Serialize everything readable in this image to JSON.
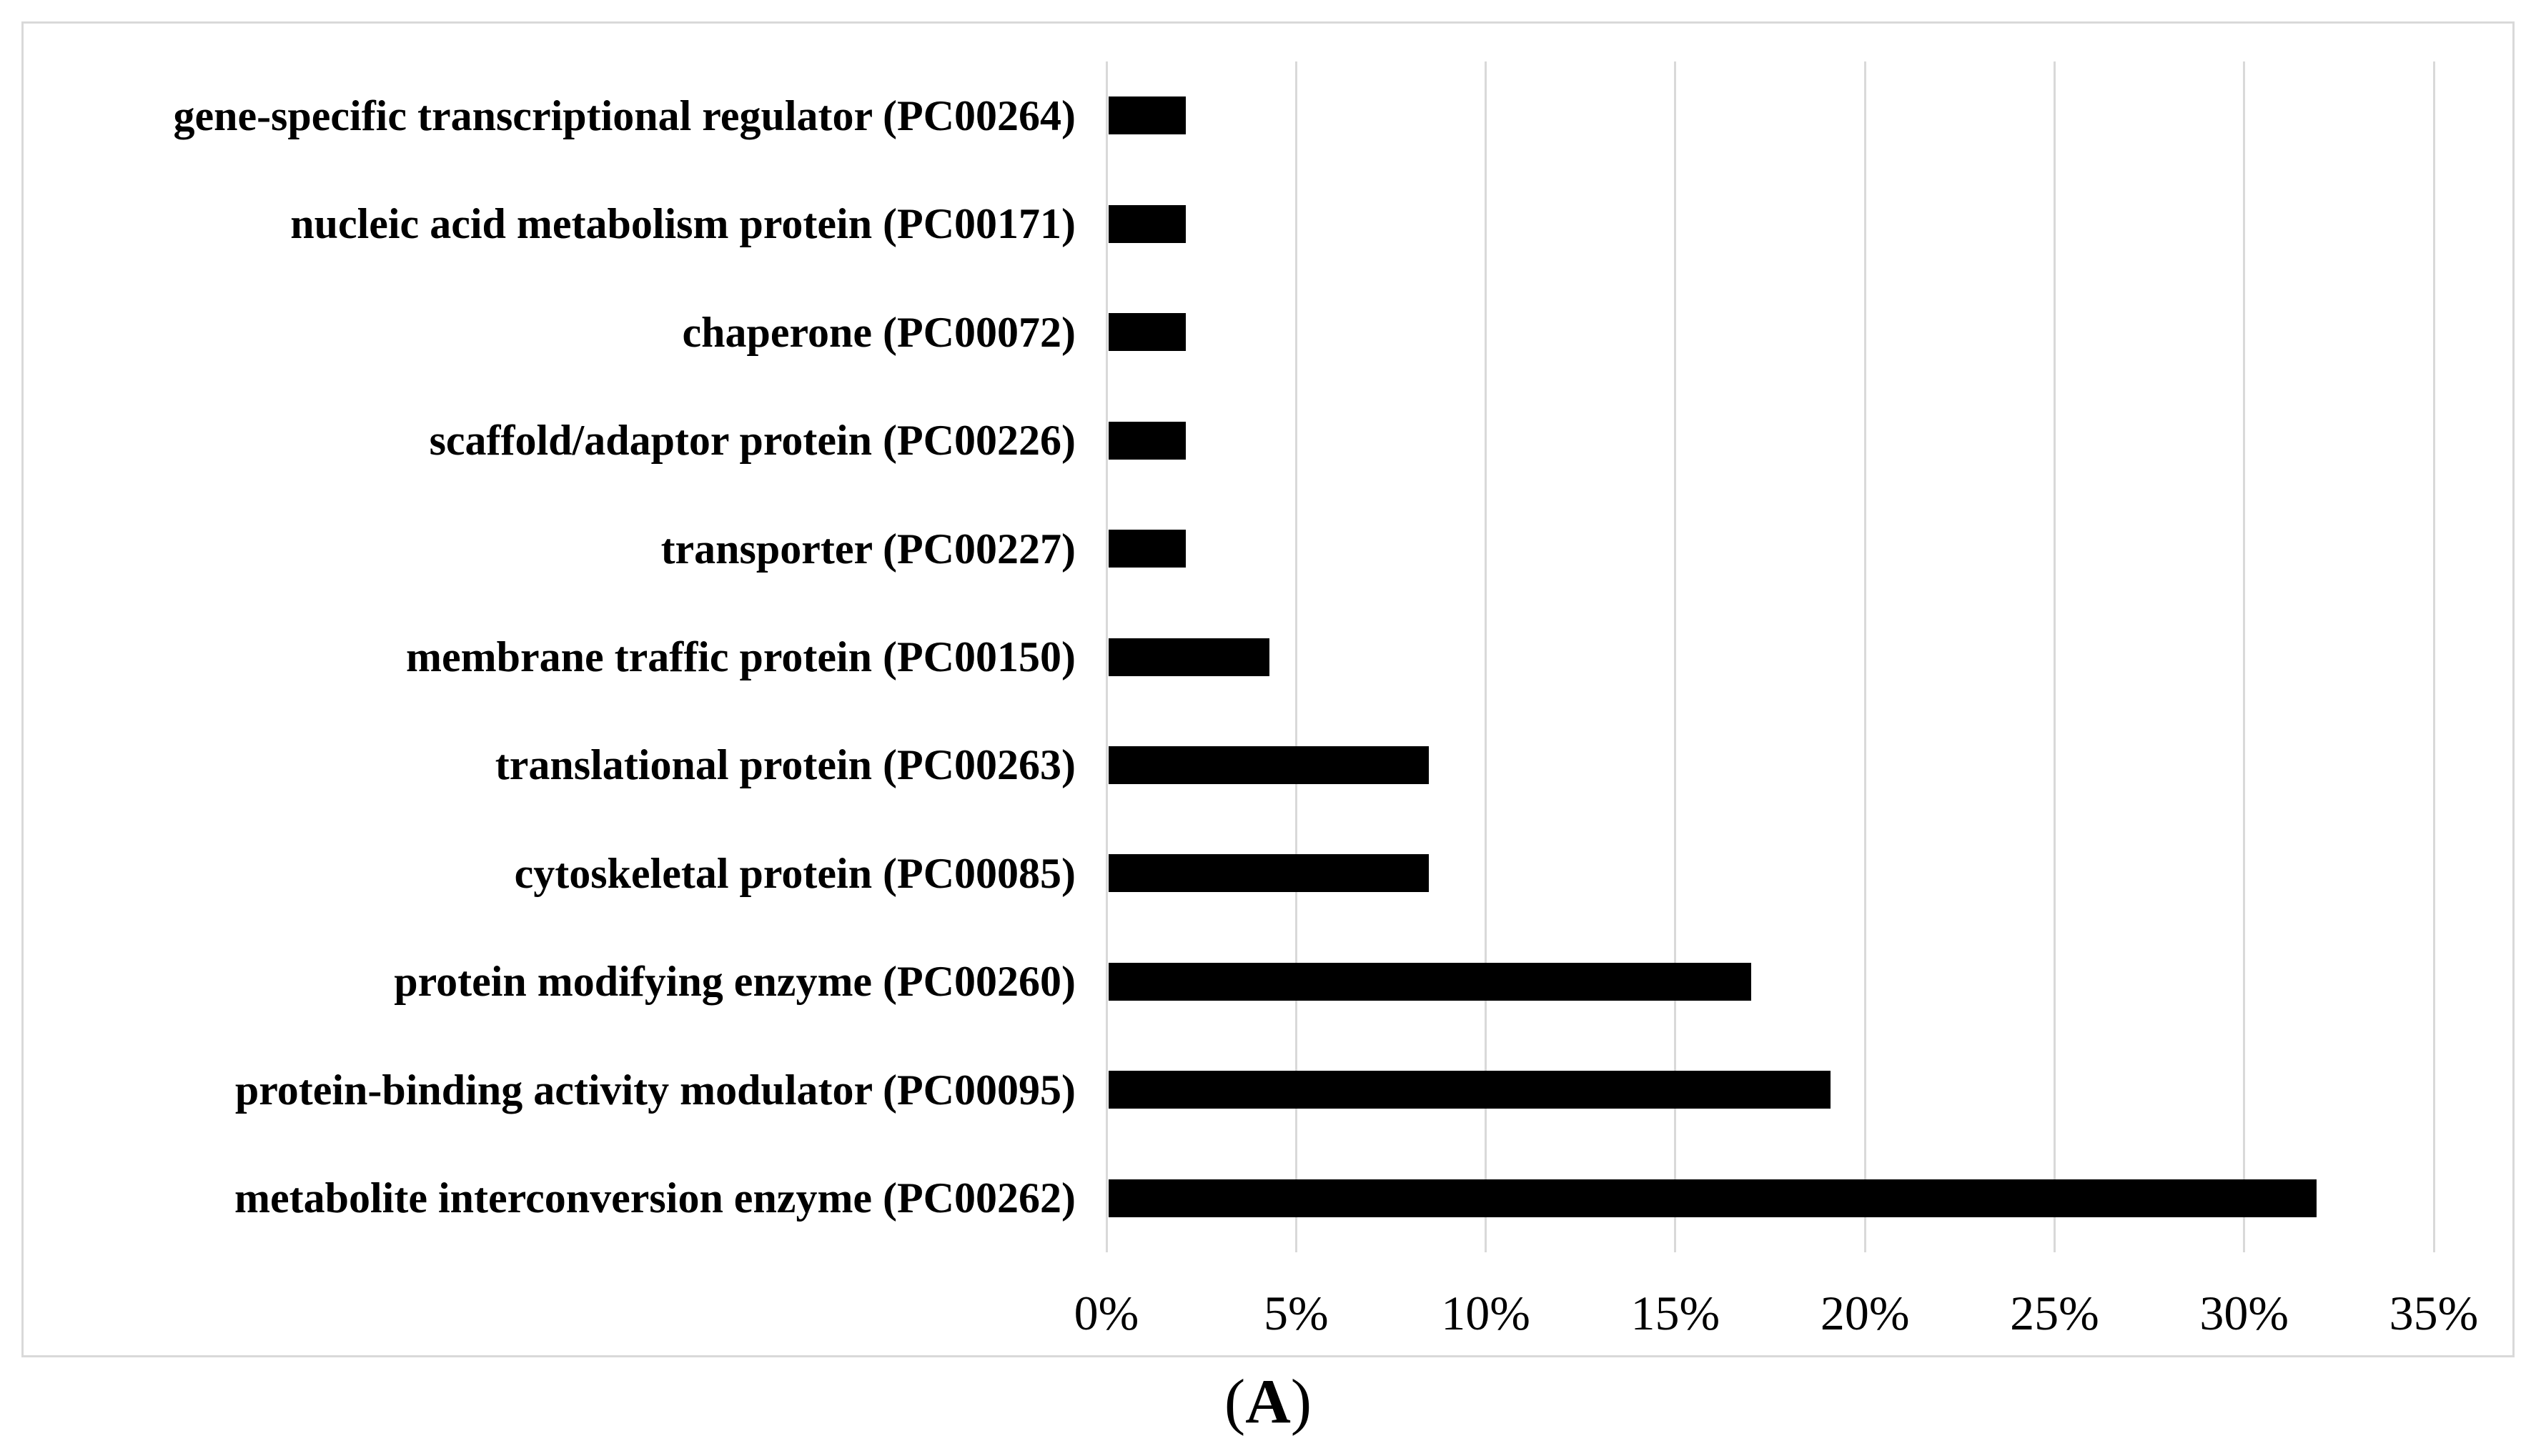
{
  "figure": {
    "caption": {
      "prefix": "(",
      "letter": "A",
      "suffix": ")"
    }
  },
  "chart_data": {
    "type": "bar",
    "orientation": "horizontal",
    "title": "",
    "xlabel": "",
    "ylabel": "",
    "categories": [
      "gene-specific transcriptional regulator (PC00264)",
      "nucleic acid metabolism protein (PC00171)",
      "chaperone (PC00072)",
      "scaffold/adaptor protein (PC00226)",
      "transporter (PC00227)",
      "membrane traffic protein (PC00150)",
      "translational protein (PC00263)",
      "cytoskeletal protein (PC00085)",
      "protein modifying enzyme (PC00260)",
      "protein-binding activity modulator (PC00095)",
      "metabolite interconversion enzyme (PC00262)"
    ],
    "values": [
      2.1,
      2.1,
      2.1,
      2.1,
      2.1,
      4.3,
      8.5,
      8.5,
      17.0,
      19.1,
      31.9
    ],
    "value_unit": "%",
    "xlim": [
      0,
      35
    ],
    "x_ticks": [
      {
        "value": 0,
        "label": "0%"
      },
      {
        "value": 5,
        "label": "5%"
      },
      {
        "value": 10,
        "label": "10%"
      },
      {
        "value": 15,
        "label": "15%"
      },
      {
        "value": 20,
        "label": "20%"
      },
      {
        "value": 25,
        "label": "25%"
      },
      {
        "value": 30,
        "label": "30%"
      },
      {
        "value": 35,
        "label": "35%"
      }
    ],
    "grid": true,
    "legend_position": "none",
    "colors": {
      "bar": "#000000",
      "gridline": "#d9d9d9",
      "frame_border": "#d9d9d9",
      "text": "#000000",
      "background": "#ffffff"
    }
  }
}
